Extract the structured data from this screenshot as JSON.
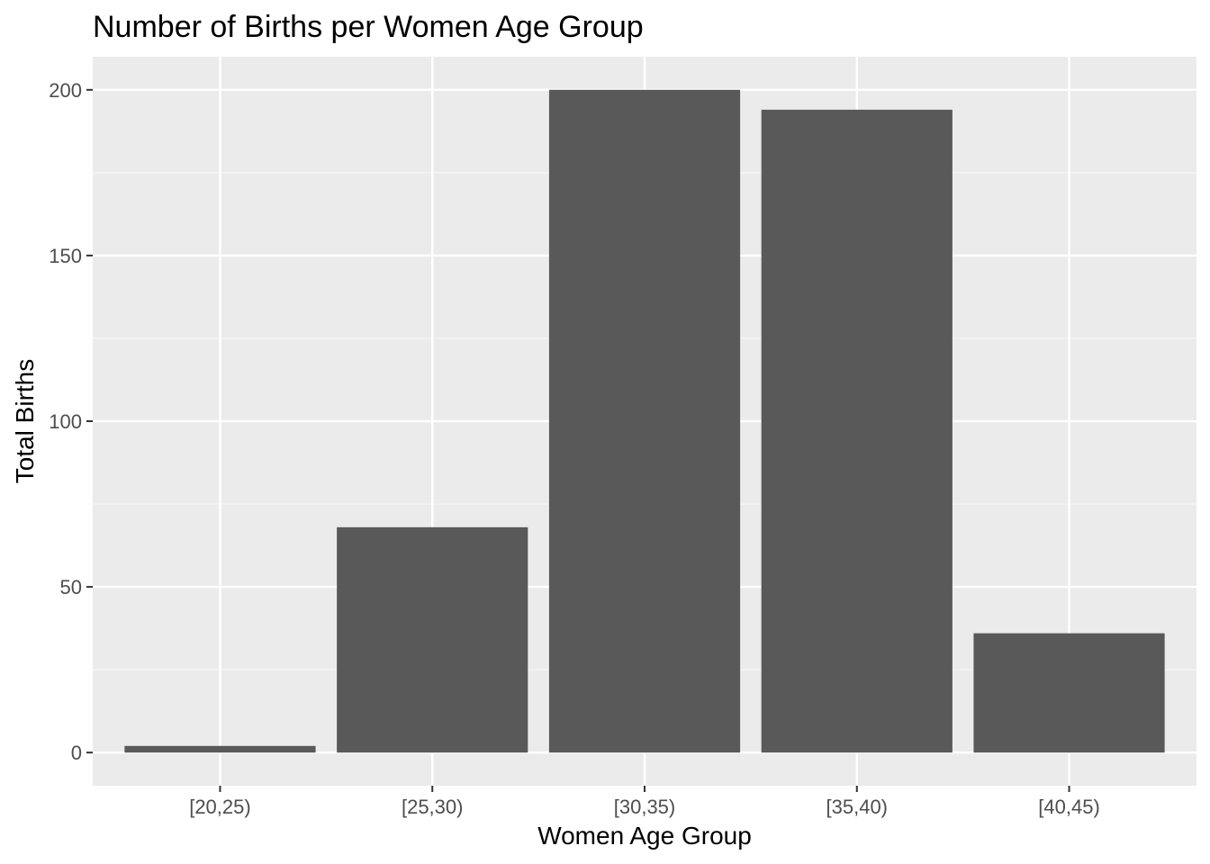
{
  "chart_data": {
    "type": "bar",
    "title": "Number of Births per Women Age Group",
    "xlabel": "Women Age Group",
    "ylabel": "Total Births",
    "categories": [
      "[20,25)",
      "[25,30)",
      "[30,35)",
      "[35,40)",
      "[40,45)"
    ],
    "values": [
      2,
      68,
      200,
      194,
      36
    ],
    "ylim": [
      -10,
      210
    ],
    "yticks": [
      0,
      50,
      100,
      150,
      200
    ],
    "ytick_labels": [
      "0",
      "50",
      "100",
      "150",
      "200"
    ],
    "grid": true,
    "legend": "none",
    "colors": {
      "bar": "#595959",
      "panel_background": "#ebebeb",
      "grid_major": "#ffffff",
      "grid_minor": "#f5f5f5",
      "tick_text": "#4d4d4d",
      "tick_mark": "#333333"
    }
  }
}
